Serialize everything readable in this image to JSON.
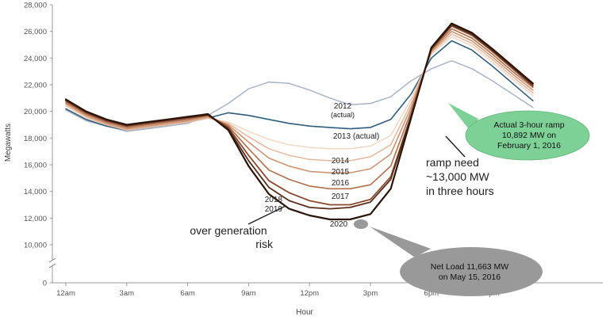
{
  "chart_data": {
    "type": "line",
    "title": "",
    "xlabel": "Hour",
    "ylabel": "Megawatts",
    "x": [
      0,
      1,
      2,
      3,
      4,
      5,
      6,
      7,
      8,
      9,
      10,
      11,
      12,
      13,
      14,
      15,
      16,
      17,
      18,
      19,
      20,
      21,
      22,
      23
    ],
    "xticks": [
      {
        "value": 0,
        "label": "12am"
      },
      {
        "value": 3,
        "label": "3am"
      },
      {
        "value": 6,
        "label": "6am"
      },
      {
        "value": 9,
        "label": "9am"
      },
      {
        "value": 12,
        "label": "12pm"
      },
      {
        "value": 15,
        "label": "3pm"
      },
      {
        "value": 18,
        "label": "6pm"
      },
      {
        "value": 21,
        "label": "9pm"
      }
    ],
    "yticks": [
      0,
      10000,
      12000,
      14000,
      16000,
      18000,
      20000,
      22000,
      24000,
      26000,
      28000
    ],
    "ytick_labels": [
      "0",
      "10,000",
      "12,000",
      "14,000",
      "16,000",
      "18,000",
      "20,000",
      "22,000",
      "24,000",
      "26,000",
      "28,000"
    ],
    "ylim": [
      0,
      28000
    ],
    "axis_break": true,
    "grid": false,
    "series": [
      {
        "name": "2012",
        "sub": "(actual)",
        "color": "#a9b4c8",
        "width": 1.5,
        "values": [
          20100,
          19300,
          18900,
          18500,
          18700,
          18900,
          19100,
          19700,
          20600,
          21700,
          22200,
          22100,
          21600,
          21000,
          20500,
          20600,
          21100,
          22300,
          23200,
          23800,
          23200,
          22300,
          21300,
          20300
        ]
      },
      {
        "name": "2013 (actual)",
        "color": "#2f5d7e",
        "width": 1.6,
        "values": [
          20200,
          19400,
          18900,
          18600,
          18800,
          19000,
          19200,
          19500,
          19900,
          19700,
          19400,
          19100,
          18900,
          18800,
          18700,
          18800,
          19400,
          21300,
          24000,
          25300,
          24600,
          23400,
          22100,
          20800
        ]
      },
      {
        "name": "2014",
        "color": "#f1d7c4",
        "width": 1.5,
        "values": [
          20400,
          19500,
          19000,
          18600,
          18800,
          19000,
          19200,
          19500,
          19200,
          18500,
          17900,
          17500,
          17300,
          17200,
          17200,
          17400,
          18200,
          20900,
          24300,
          25600,
          24900,
          23700,
          22400,
          21200
        ]
      },
      {
        "name": "2015",
        "color": "#e3b89d",
        "width": 1.5,
        "values": [
          20500,
          19600,
          19000,
          18600,
          18800,
          19000,
          19200,
          19500,
          19100,
          18100,
          17200,
          16700,
          16400,
          16300,
          16300,
          16600,
          17500,
          20600,
          24400,
          25800,
          25100,
          23900,
          22600,
          21400
        ]
      },
      {
        "name": "2016",
        "color": "#cc9472",
        "width": 1.6,
        "values": [
          20600,
          19700,
          19100,
          18700,
          18900,
          19100,
          19300,
          19600,
          19000,
          17700,
          16500,
          15900,
          15500,
          15400,
          15400,
          15700,
          16800,
          20300,
          24500,
          26000,
          25300,
          24100,
          22800,
          21600
        ]
      },
      {
        "name": "2017",
        "color": "#b06e4c",
        "width": 1.6,
        "values": [
          20700,
          19800,
          19200,
          18800,
          19000,
          19200,
          19400,
          19700,
          18900,
          17200,
          15600,
          14900,
          14400,
          14200,
          14200,
          14500,
          15900,
          20000,
          24600,
          26200,
          25500,
          24300,
          23000,
          21800
        ]
      },
      {
        "name": "2018",
        "color": "#8a4a2e",
        "width": 1.8,
        "values": [
          20800,
          19900,
          19300,
          18900,
          19100,
          19300,
          19500,
          19700,
          18800,
          16700,
          14800,
          13900,
          13300,
          13000,
          13000,
          13400,
          15100,
          19700,
          24700,
          26400,
          25700,
          24500,
          23200,
          21900
        ]
      },
      {
        "name": "2019",
        "color": "#5a2e1a",
        "width": 1.8,
        "values": [
          20850,
          19950,
          19350,
          18950,
          19150,
          19350,
          19550,
          19750,
          18700,
          16300,
          14300,
          13300,
          12800,
          12700,
          12800,
          13200,
          14900,
          19600,
          24700,
          26500,
          25800,
          24600,
          23300,
          22000
        ]
      },
      {
        "name": "2020",
        "color": "#2a150b",
        "width": 2.2,
        "values": [
          20900,
          20000,
          19400,
          19000,
          19200,
          19400,
          19600,
          19800,
          18600,
          15900,
          13800,
          12700,
          12200,
          11900,
          11900,
          12300,
          14200,
          19500,
          24800,
          26600,
          25900,
          24700,
          23400,
          22100
        ]
      }
    ],
    "annotations": {
      "ramp": [
        "ramp need",
        "~13,000 MW",
        "in three hours"
      ],
      "overgen": [
        "over generation",
        "risk"
      ],
      "green_bubble": [
        "Actual 3-hour ramp",
        "10,892 MW on",
        "February 1, 2016"
      ],
      "gray_bubble": [
        "Net Load 11,663 MW",
        "on May 15, 2016"
      ]
    },
    "colors": {
      "green_bubble": "#7ed196",
      "gray_bubble": "#999999"
    }
  }
}
